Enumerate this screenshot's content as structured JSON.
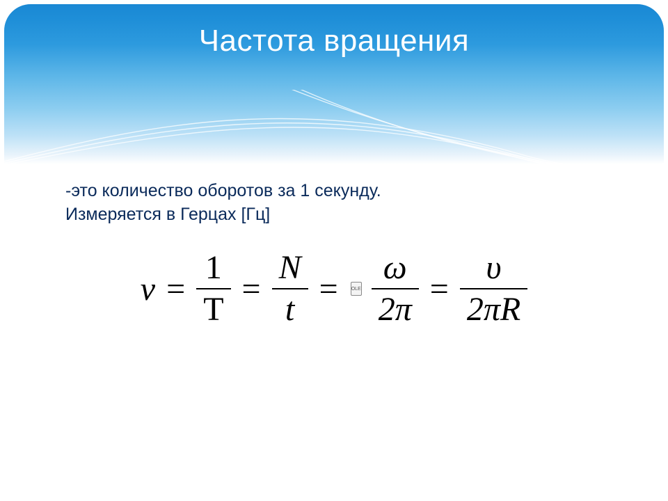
{
  "header": {
    "title": "Частота вращения",
    "title_color": "#ffffff",
    "title_fontsize": 44,
    "gradient_top": "#1a88d4",
    "gradient_bottom": "#ffffff",
    "swoosh_stroke": "#ffffff",
    "swoosh_stroke_opacity": 0.75,
    "swoosh_stroke_width": 1.4
  },
  "definition": {
    "line1": "-это количество оборотов за 1 секунду.",
    "line2": "Измеряется в Герцах [Гц]",
    "text_color": "#0a2a5a",
    "fontsize": 25
  },
  "formula": {
    "fontsize_base": 48,
    "color": "#000000",
    "lhs": "ν",
    "terms": [
      {
        "num": "1",
        "den": "T",
        "num_italic": false,
        "den_italic": false
      },
      {
        "num": "N",
        "den": "t",
        "num_italic": true,
        "den_italic": true
      },
      {
        "num": "ω",
        "den": "2π",
        "num_italic": true,
        "den_italic": true,
        "has_broken_glyph_before": true
      },
      {
        "num": "υ",
        "den": "2πR",
        "num_italic": true,
        "den_italic": true
      }
    ],
    "eq_symbol": "="
  },
  "background_color": "#ffffff"
}
